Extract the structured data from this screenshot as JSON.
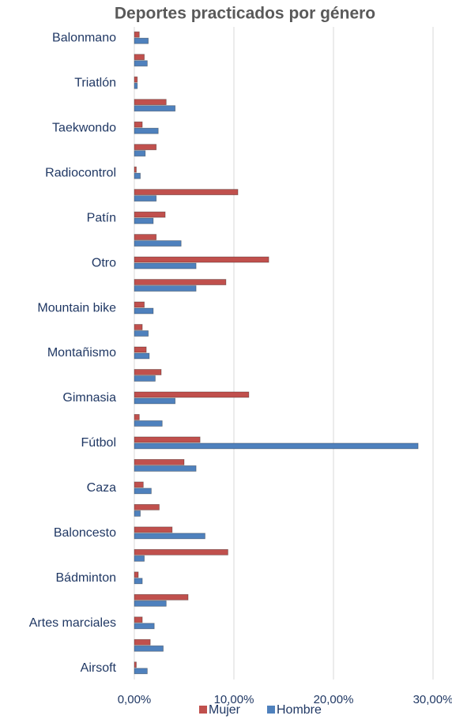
{
  "chart_data": {
    "type": "hbar",
    "title": "Deportes practicados por género",
    "categories": [
      "Airsoft",
      null,
      "Artes marciales",
      null,
      "Bádminton",
      null,
      "Baloncesto",
      null,
      "Caza",
      null,
      "Fútbol",
      null,
      "Gimnasia",
      null,
      "Montañismo",
      null,
      "Mountain bike",
      null,
      "Otro",
      null,
      "Patín",
      null,
      "Radiocontrol",
      null,
      "Taekwondo",
      null,
      "Triatlón",
      null,
      "Balonmano"
    ],
    "series": [
      {
        "name": "Mujer",
        "color": "#c0504d",
        "values": [
          0.2,
          1.6,
          0.8,
          5.4,
          0.4,
          9.4,
          3.8,
          2.5,
          0.9,
          5.0,
          6.6,
          0.5,
          11.5,
          2.7,
          1.2,
          0.8,
          1.0,
          9.2,
          13.5,
          2.2,
          3.1,
          10.4,
          0.2,
          2.2,
          0.8,
          3.2,
          0.3,
          1.0,
          0.5
        ]
      },
      {
        "name": "Hombre",
        "color": "#4f81bd",
        "values": [
          1.3,
          2.9,
          2.0,
          3.2,
          0.8,
          1.0,
          7.1,
          0.6,
          1.7,
          6.2,
          28.5,
          2.8,
          4.1,
          2.1,
          1.5,
          1.4,
          1.9,
          6.2,
          6.2,
          4.7,
          1.9,
          2.2,
          0.6,
          1.1,
          2.4,
          4.1,
          0.3,
          1.3,
          1.4
        ]
      }
    ],
    "xlim": [
      0,
      30
    ],
    "xticks": [
      {
        "value": 0,
        "label": "0,00%"
      },
      {
        "value": 10,
        "label": "10,00%"
      },
      {
        "value": 20,
        "label": "20,00%"
      },
      {
        "value": 30,
        "label": "30,00%"
      }
    ],
    "grid": true,
    "legend": "bottom"
  }
}
